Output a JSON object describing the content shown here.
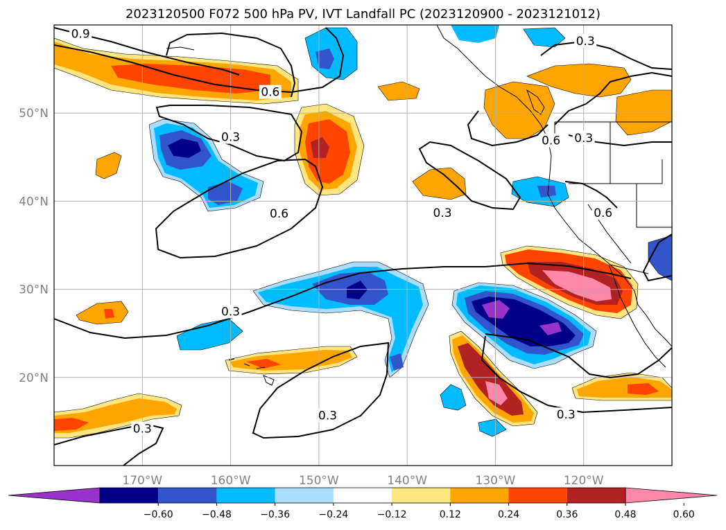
{
  "title": "2023120500 F072 500 hPa PV, IVT Landfall PC (2023120900 - 2023121012)",
  "chart_data": {
    "type": "map-contour",
    "projection": "PlateCarree",
    "lon_range": [
      -180,
      -110
    ],
    "lat_range": [
      10,
      60
    ],
    "lon_ticks": [
      {
        "value": -170,
        "label": "170°W"
      },
      {
        "value": -160,
        "label": "160°W"
      },
      {
        "value": -150,
        "label": "150°W"
      },
      {
        "value": -140,
        "label": "140°W"
      },
      {
        "value": -130,
        "label": "130°W"
      },
      {
        "value": -120,
        "label": "120°W"
      }
    ],
    "lat_ticks": [
      {
        "value": 20,
        "label": "20°N"
      },
      {
        "value": 30,
        "label": "30°N"
      },
      {
        "value": 40,
        "label": "40°N"
      },
      {
        "value": 50,
        "label": "50°N"
      }
    ],
    "grid": true,
    "colorbar": {
      "orientation": "horizontal",
      "extend": "both",
      "levels": [
        -0.6,
        -0.48,
        -0.36,
        -0.24,
        -0.12,
        0.12,
        0.24,
        0.36,
        0.48,
        0.6
      ],
      "tick_labels": [
        "−0.60",
        "−0.48",
        "−0.36",
        "−0.24",
        "−0.12",
        "0.12",
        "0.24",
        "0.36",
        "0.48",
        "0.60"
      ],
      "colors": [
        "#9933cc",
        "#000088",
        "#3355cc",
        "#00bbff",
        "#aaddff",
        "#ffffff",
        "#ffe680",
        "#ffa500",
        "#ff4400",
        "#b22222",
        "#ff88aa"
      ]
    },
    "contour_labels": [
      {
        "text": "0.9",
        "lon": -177.0,
        "lat": 59.0
      },
      {
        "text": "0.6",
        "lon": -155.5,
        "lat": 52.4
      },
      {
        "text": "0.3",
        "lon": -160.0,
        "lat": 47.3
      },
      {
        "text": "0.6",
        "lon": -154.5,
        "lat": 38.6
      },
      {
        "text": "0.3",
        "lon": -160.0,
        "lat": 27.5
      },
      {
        "text": "0.3",
        "lon": -170.0,
        "lat": 14.2
      },
      {
        "text": "0.3",
        "lon": -149.0,
        "lat": 15.7
      },
      {
        "text": "0.3",
        "lon": -119.8,
        "lat": 58.2
      },
      {
        "text": "0.3",
        "lon": -136.0,
        "lat": 38.7
      },
      {
        "text": "0.6",
        "lon": -123.7,
        "lat": 46.9
      },
      {
        "text": "0.3",
        "lon": -120.0,
        "lat": 47.2
      },
      {
        "text": "0.6",
        "lon": -117.8,
        "lat": 38.7
      },
      {
        "text": "0.3",
        "lon": -122.0,
        "lat": 15.8
      }
    ]
  }
}
